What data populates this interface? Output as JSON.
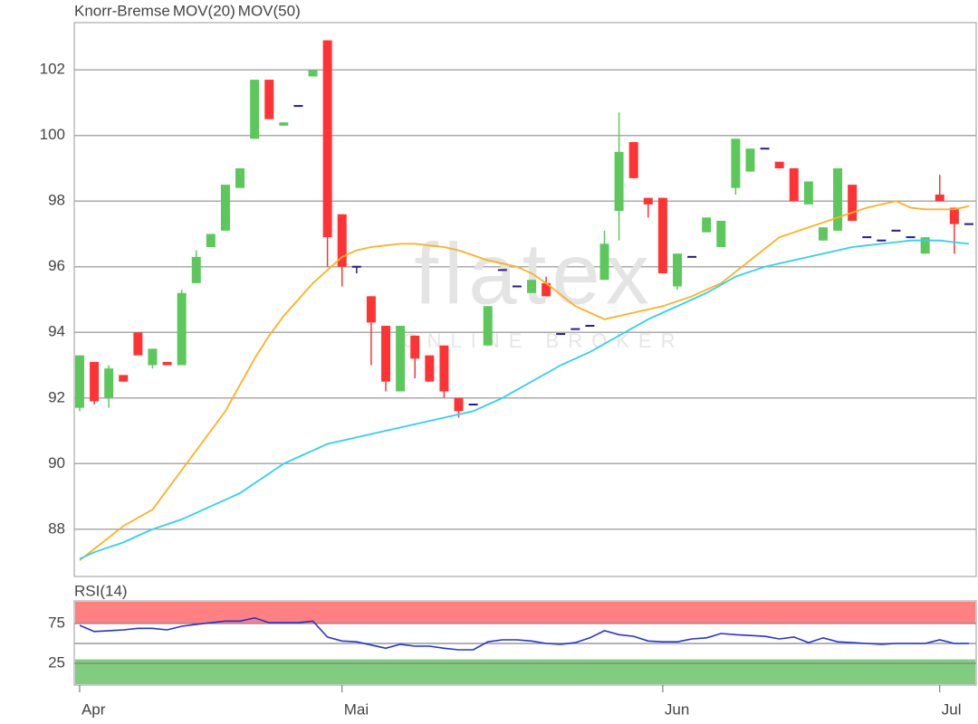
{
  "chart_data": [
    {
      "type": "candlestick",
      "title": "Knorr-Bremse",
      "title_color": "#ff5a1f",
      "watermark": "flatex",
      "watermark_sub": "ONLINE BROKER",
      "open": [
        91.7,
        93.1,
        92.0,
        92.7,
        94.0,
        93.0,
        93.1,
        93.0,
        95.5,
        96.6,
        97.1,
        98.4,
        99.9,
        101.7,
        100.3,
        100.9,
        101.8,
        102.9,
        97.6,
        96.0,
        95.1,
        94.2,
        92.2,
        93.9,
        93.3,
        93.6,
        92.0,
        91.8,
        93.6,
        95.9,
        95.4,
        95.2,
        95.5,
        93.95,
        94.1,
        94.2,
        95.6,
        97.7,
        99.8,
        98.1,
        98.1,
        95.4,
        96.3,
        97.05,
        96.6,
        98.4,
        98.9,
        99.6,
        99.2,
        99.0,
        97.9,
        96.8,
        97.1,
        98.5,
        96.9,
        96.8,
        97.1,
        96.9,
        96.4,
        98.2,
        97.8,
        97.3
      ],
      "high": [
        93.3,
        93.1,
        93.0,
        92.7,
        94.0,
        93.5,
        93.1,
        95.3,
        96.5,
        97.0,
        98.5,
        99.0,
        101.7,
        101.7,
        100.4,
        100.9,
        102.0,
        102.9,
        97.6,
        96.0,
        95.1,
        94.2,
        94.2,
        93.9,
        93.3,
        93.6,
        92.0,
        91.8,
        94.8,
        95.9,
        95.4,
        95.6,
        95.7,
        93.95,
        94.1,
        94.2,
        97.1,
        100.7,
        99.8,
        98.1,
        98.1,
        96.4,
        96.3,
        97.5,
        97.4,
        99.9,
        99.6,
        99.6,
        99.2,
        99.0,
        98.6,
        97.2,
        99.0,
        98.5,
        96.9,
        96.8,
        97.1,
        96.9,
        96.9,
        98.8,
        97.8,
        97.3
      ],
      "low": [
        91.6,
        91.8,
        91.7,
        92.5,
        93.3,
        92.9,
        93.0,
        93.0,
        95.5,
        96.6,
        97.1,
        98.4,
        99.9,
        100.5,
        100.3,
        100.9,
        101.8,
        96.0,
        95.4,
        95.8,
        93.0,
        92.2,
        92.2,
        92.6,
        92.5,
        92.0,
        91.4,
        91.8,
        93.6,
        95.9,
        95.4,
        95.2,
        95.1,
        93.95,
        94.1,
        94.2,
        95.6,
        96.8,
        98.7,
        97.5,
        95.8,
        95.3,
        96.3,
        97.05,
        96.6,
        98.2,
        98.9,
        99.6,
        99.0,
        98.0,
        97.9,
        96.8,
        97.1,
        97.4,
        96.9,
        96.8,
        97.1,
        96.9,
        96.4,
        98.0,
        96.4,
        97.3
      ],
      "close": [
        93.3,
        91.9,
        92.9,
        92.5,
        93.3,
        93.5,
        93.0,
        95.2,
        96.3,
        97.0,
        98.5,
        99.0,
        101.7,
        100.5,
        100.4,
        100.9,
        102.0,
        96.9,
        96.0,
        96.0,
        94.3,
        92.5,
        94.2,
        93.2,
        92.5,
        92.2,
        91.6,
        91.8,
        94.8,
        95.9,
        95.4,
        95.6,
        95.1,
        93.95,
        94.1,
        94.2,
        96.7,
        99.5,
        98.7,
        97.9,
        95.8,
        96.4,
        96.3,
        97.5,
        97.4,
        99.9,
        99.6,
        99.6,
        99.0,
        98.0,
        98.6,
        97.2,
        99.0,
        97.4,
        96.9,
        96.8,
        97.1,
        96.9,
        96.9,
        98.0,
        97.3,
        97.3
      ],
      "up_color": "#5cc85c",
      "down_color": "#ff3333",
      "flat_color": "#2a1a8a",
      "series": [
        {
          "name": "MOV(20)",
          "color": "#ffb020",
          "values": [
            87.05,
            87.4,
            87.75,
            88.1,
            88.35,
            88.6,
            89.2,
            89.8,
            90.4,
            91.0,
            91.6,
            92.4,
            93.2,
            93.9,
            94.5,
            95.0,
            95.5,
            95.9,
            96.3,
            96.5,
            96.6,
            96.65,
            96.7,
            96.7,
            96.65,
            96.6,
            96.5,
            96.35,
            96.2,
            96.1,
            96.0,
            95.8,
            95.5,
            95.15,
            94.8,
            94.6,
            94.4,
            94.5,
            94.6,
            94.7,
            94.8,
            94.95,
            95.1,
            95.3,
            95.5,
            95.85,
            96.2,
            96.55,
            96.9,
            97.05,
            97.2,
            97.35,
            97.5,
            97.65,
            97.8,
            97.9,
            98.0,
            97.8,
            97.75,
            97.75,
            97.75,
            97.85
          ]
        },
        {
          "name": "MOV(50)",
          "color": "#30d0f0",
          "values": [
            87.1,
            87.3,
            87.45,
            87.6,
            87.8,
            88.0,
            88.15,
            88.3,
            88.5,
            88.7,
            88.9,
            89.1,
            89.4,
            89.7,
            90.0,
            90.2,
            90.4,
            90.6,
            90.7,
            90.8,
            90.9,
            91.0,
            91.1,
            91.2,
            91.3,
            91.4,
            91.5,
            91.6,
            91.8,
            92.0,
            92.25,
            92.5,
            92.75,
            93.0,
            93.2,
            93.4,
            93.65,
            93.9,
            94.15,
            94.4,
            94.6,
            94.8,
            95.0,
            95.2,
            95.45,
            95.7,
            95.85,
            96.0,
            96.1,
            96.2,
            96.3,
            96.4,
            96.5,
            96.6,
            96.65,
            96.7,
            96.75,
            96.8,
            96.8,
            96.8,
            96.75,
            96.7
          ]
        }
      ],
      "xlim": [
        -0.37,
        61.5
      ],
      "ylim": [
        86.56,
        103.44
      ],
      "yticks": [
        88,
        90,
        92,
        94,
        96,
        98,
        100,
        102
      ],
      "grid": true
    },
    {
      "type": "line",
      "title": "RSI(14)",
      "title_color": "#1a1aff",
      "color": "#2233dd",
      "values": [
        72.7,
        65,
        66,
        67,
        69,
        69,
        67,
        71.6,
        74,
        76,
        78,
        78,
        82,
        76,
        76,
        76,
        78,
        58,
        53,
        52,
        48,
        44,
        49,
        46.6,
        46.6,
        44,
        42,
        42,
        52,
        54.5,
        54.5,
        53,
        50,
        49,
        51,
        57,
        66,
        61,
        59,
        53,
        52,
        52,
        55.7,
        57,
        62.5,
        61,
        60,
        59,
        55.7,
        58,
        51,
        57,
        52,
        51,
        50,
        49,
        50,
        50,
        50,
        54.5,
        50,
        50
      ],
      "overbought": 75,
      "oversold": 30,
      "midline": 50,
      "xlim": [
        -0.37,
        61.5
      ],
      "ylim": [
        -2.3,
        103.4
      ],
      "yticks": [
        25,
        75
      ],
      "xticks": [
        {
          "value": 0,
          "label": "Apr"
        },
        {
          "value": 18,
          "label": "Mai"
        },
        {
          "value": 40,
          "label": "Jun"
        },
        {
          "value": 59,
          "label": "Jul"
        }
      ]
    }
  ]
}
